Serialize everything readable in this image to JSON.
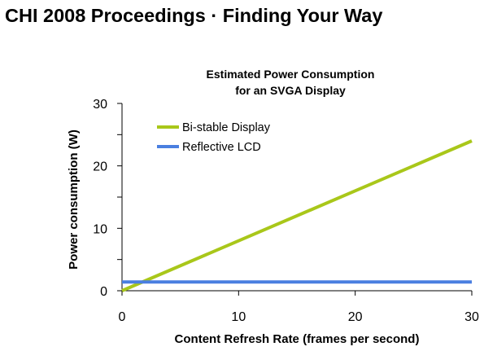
{
  "header": {
    "title": "CHI 2008 Proceedings · Finding Your Way"
  },
  "colors": {
    "bistable": "#a9c71a",
    "lcd": "#4a7fe0",
    "axis": "#000000"
  },
  "chart_data": {
    "type": "line",
    "title_lines": [
      "Estimated Power Consumption",
      "for an SVGA Display"
    ],
    "xlabel": "Content Refresh Rate (frames per second)",
    "ylabel": "Power consumption (W)",
    "xlim": [
      0,
      30
    ],
    "ylim": [
      0,
      30
    ],
    "x_ticks": [
      0,
      10,
      20,
      30
    ],
    "y_ticks": [
      0,
      10,
      20,
      30
    ],
    "y_minor_step": 5,
    "grid": false,
    "legend_position": "top-left",
    "series": [
      {
        "name": "Bi-stable Display",
        "color": "#a9c71a",
        "x": [
          0,
          30
        ],
        "y": [
          0,
          24
        ]
      },
      {
        "name": "Reflective LCD",
        "color": "#4a7fe0",
        "x": [
          0,
          30
        ],
        "y": [
          1.4,
          1.4
        ]
      }
    ]
  }
}
